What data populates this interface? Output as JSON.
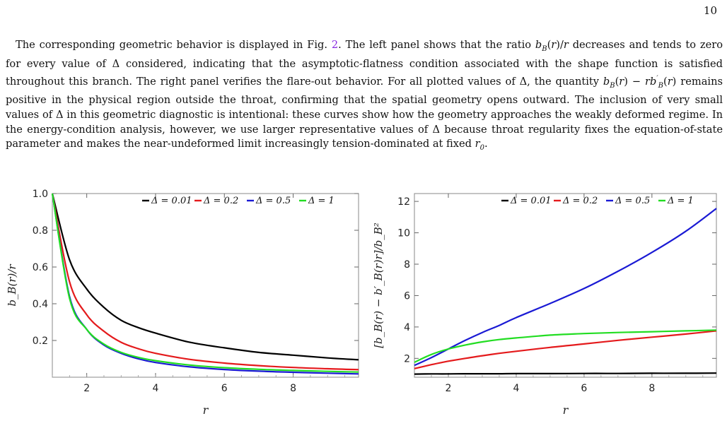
{
  "page_number": "10",
  "paragraph": {
    "segments": [
      {
        "t": "The corresponding geometric behavior is displayed in Fig. "
      },
      {
        "t": "2",
        "ref": true
      },
      {
        "t": ". The left panel shows that the ratio "
      },
      {
        "t": "b",
        "i": true
      },
      {
        "t": "B",
        "sub": true
      },
      {
        "t": "(",
        "i": false
      },
      {
        "t": "r",
        "i": true
      },
      {
        "t": ")/"
      },
      {
        "t": "r",
        "i": true
      },
      {
        "t": " decreases and tends to zero for every value of Δ considered, indicating that the asymptotic-flatness condition associated with the shape function is satisfied throughout this branch. The right panel verifies the flare-out behavior. For all plotted values of Δ, the quantity "
      },
      {
        "t": "b",
        "i": true
      },
      {
        "t": "B",
        "sub": true
      },
      {
        "t": "("
      },
      {
        "t": "r",
        "i": true
      },
      {
        "t": ") − "
      },
      {
        "t": "rb",
        "i": true
      },
      {
        "t": "′",
        "sup": true
      },
      {
        "t": "B",
        "sub": true
      },
      {
        "t": "("
      },
      {
        "t": "r",
        "i": true
      },
      {
        "t": ")"
      },
      {
        "t": " remains positive in the physical region outside the throat, confirming that the spatial geometry opens outward. The inclusion of very small values of Δ in this geometric diagnostic is intentional: these curves show how the geometry approaches the weakly deformed regime. In the energy-condition analysis, however, we use larger representative values of Δ because throat regularity fixes the equation-of-state parameter and makes the near-undeformed limit increasingly tension-dominated at fixed "
      },
      {
        "t": "r",
        "i": true
      },
      {
        "t": "0",
        "sub": true
      },
      {
        "t": "."
      }
    ]
  },
  "colors": {
    "d001": "#000000",
    "d02": "#e41a1c",
    "d05": "#1a1ad4",
    "d1": "#22dd22"
  },
  "chart_data": [
    {
      "type": "line",
      "ylabel": "b_B(r)/r",
      "xlabel": "r",
      "xlim": [
        1,
        9.9
      ],
      "ylim": [
        0,
        1.0
      ],
      "x_ticks": [
        "2",
        "4",
        "6",
        "8"
      ],
      "y_ticks": [
        "0.2",
        "0.4",
        "0.6",
        "0.8",
        "1.0"
      ],
      "legend_position": "top-right",
      "x": [
        1,
        1.5,
        2,
        2.5,
        3,
        3.5,
        4,
        5,
        6,
        7,
        8,
        9,
        9.9
      ],
      "series": [
        {
          "name": "Δ = 0.01",
          "color": "#000000",
          "values": [
            1.0,
            0.64,
            0.48,
            0.38,
            0.31,
            0.27,
            0.24,
            0.19,
            0.16,
            0.135,
            0.12,
            0.105,
            0.095
          ]
        },
        {
          "name": "Δ = 0.2",
          "color": "#e41a1c",
          "values": [
            1.0,
            0.52,
            0.34,
            0.25,
            0.19,
            0.155,
            0.13,
            0.097,
            0.077,
            0.063,
            0.053,
            0.046,
            0.041
          ]
        },
        {
          "name": "Δ = 0.5",
          "color": "#1a1ad4",
          "values": [
            1.0,
            0.44,
            0.26,
            0.175,
            0.13,
            0.1,
            0.08,
            0.056,
            0.042,
            0.033,
            0.027,
            0.022,
            0.018
          ]
        },
        {
          "name": "Δ = 1",
          "color": "#22dd22",
          "values": [
            1.0,
            0.43,
            0.26,
            0.18,
            0.135,
            0.108,
            0.09,
            0.066,
            0.052,
            0.043,
            0.037,
            0.032,
            0.028
          ]
        }
      ]
    },
    {
      "type": "line",
      "ylabel": "[b_B(r) − b′_B(r)r]/b_B²",
      "xlabel": "r",
      "xlim": [
        1,
        9.9
      ],
      "ylim": [
        0.8,
        12.5
      ],
      "x_ticks": [
        "2",
        "4",
        "6",
        "8"
      ],
      "y_ticks": [
        "2",
        "4",
        "6",
        "8",
        "10",
        "12"
      ],
      "legend_position": "top-right",
      "x": [
        1,
        1.5,
        2,
        2.5,
        3,
        3.5,
        4,
        5,
        6,
        7,
        8,
        9,
        9.9
      ],
      "series": [
        {
          "name": "Δ = 0.01",
          "color": "#000000",
          "values": [
            1.0,
            1.01,
            1.01,
            1.02,
            1.02,
            1.02,
            1.03,
            1.03,
            1.04,
            1.04,
            1.05,
            1.05,
            1.06
          ]
        },
        {
          "name": "Δ = 0.2",
          "color": "#e41a1c",
          "values": [
            1.35,
            1.6,
            1.82,
            2.0,
            2.17,
            2.32,
            2.45,
            2.7,
            2.92,
            3.15,
            3.35,
            3.55,
            3.75
          ]
        },
        {
          "name": "Δ = 0.5",
          "color": "#1a1ad4",
          "values": [
            1.55,
            2.05,
            2.6,
            3.15,
            3.65,
            4.1,
            4.6,
            5.5,
            6.45,
            7.55,
            8.75,
            10.1,
            11.55
          ]
        },
        {
          "name": "Δ = 1",
          "color": "#22dd22",
          "values": [
            1.75,
            2.25,
            2.6,
            2.85,
            3.05,
            3.2,
            3.3,
            3.48,
            3.58,
            3.65,
            3.7,
            3.75,
            3.8
          ]
        }
      ]
    }
  ]
}
